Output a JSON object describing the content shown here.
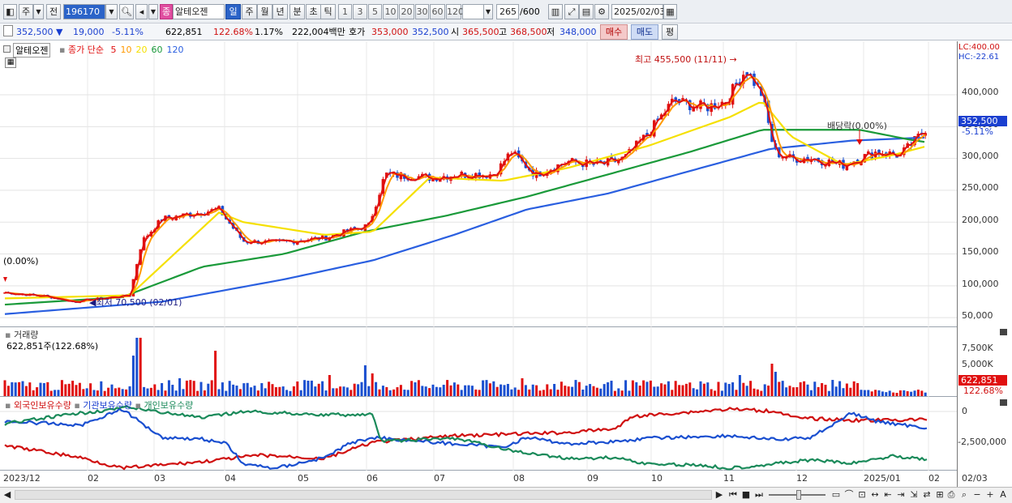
{
  "toolbar": {
    "period_main": "주",
    "period_prev": "전",
    "code": "196170",
    "stock_badge": "종",
    "stock_name": "알테오젠",
    "periods": [
      "일",
      "주",
      "월",
      "년",
      "분",
      "초",
      "틱"
    ],
    "active_period": "일",
    "intervals": [
      "1",
      "3",
      "5",
      "10",
      "20",
      "30",
      "60",
      "120"
    ],
    "count": "265",
    "count_total": "/600",
    "date": "2025/02/03"
  },
  "quote": {
    "price": "352,500",
    "change": "19,000",
    "change_pct": "-5.11%",
    "volume": "622,851",
    "vol_ratio": "122.68%",
    "turnover_pct": "1.17%",
    "amount": "222,004백만",
    "ask_label": "호가",
    "ask": "353,000",
    "bid": "352,500",
    "open_label": "시",
    "open": "365,500",
    "high_label": "고",
    "high": "368,500",
    "low_label": "저",
    "low": "348,000",
    "buy_button": "매수",
    "sell_button": "매도",
    "eval_button": "평"
  },
  "legend": {
    "name": "알테오젠",
    "series_label": "종가 단순",
    "ma": [
      "5",
      "10",
      "20",
      "60",
      "120"
    ],
    "ma_colors": [
      "#e01010",
      "#ff9900",
      "#f5e000",
      "#1a9a3a",
      "#2a5fe0"
    ]
  },
  "price_pane": {
    "lc": "LC:400.00",
    "hc": "HC:-22.61",
    "high_note": "최고 455,500 (11/11)",
    "low_note": "최저 70,500 (02/01)",
    "left_note": "(0.00%)",
    "dividend_note": "배당락(0.00%)",
    "last_price": "352,500",
    "last_pct": "-5.11%",
    "yticks": [
      "400,000",
      "350,000",
      "300,000",
      "250,000",
      "200,000",
      "150,000",
      "100,000",
      "50,000"
    ]
  },
  "volume_pane": {
    "title": "거래량",
    "info": "622,851주(122.68%)",
    "yticks": [
      "7,500K",
      "5,000K",
      "2,500K"
    ],
    "last": "622,851",
    "last_pct": "122.68%"
  },
  "holding_pane": {
    "title_foreign": "외국인보유수량",
    "title_inst": "기관보유수량",
    "title_indiv": "개인보유수량",
    "yticks": [
      "0",
      "-2,500,000"
    ]
  },
  "xaxis": [
    "2023/12",
    "02",
    "03",
    "04",
    "05",
    "06",
    "07",
    "08",
    "09",
    "10",
    "11",
    "12",
    "2025/01",
    "02",
    "02/03"
  ],
  "chart_data": {
    "type": "candlestick",
    "title": "알테오젠",
    "ylim": [
      40000,
      470000
    ],
    "close_anchors": [
      [
        0,
        90000
      ],
      [
        60,
        83000
      ],
      [
        90,
        75000
      ],
      [
        160,
        85000
      ],
      [
        175,
        170000
      ],
      [
        200,
        205000
      ],
      [
        270,
        220000
      ],
      [
        300,
        170000
      ],
      [
        340,
        168000
      ],
      [
        400,
        175000
      ],
      [
        455,
        195000
      ],
      [
        475,
        275000
      ],
      [
        530,
        270000
      ],
      [
        570,
        275000
      ],
      [
        610,
        275000
      ],
      [
        630,
        310000
      ],
      [
        660,
        275000
      ],
      [
        700,
        295000
      ],
      [
        740,
        290000
      ],
      [
        770,
        300000
      ],
      [
        800,
        340000
      ],
      [
        830,
        390000
      ],
      [
        870,
        380000
      ],
      [
        895,
        390000
      ],
      [
        920,
        440000
      ],
      [
        940,
        400000
      ],
      [
        955,
        310000
      ],
      [
        975,
        300000
      ],
      [
        1000,
        300000
      ],
      [
        1040,
        290000
      ],
      [
        1080,
        310000
      ],
      [
        1110,
        305000
      ],
      [
        1130,
        330000
      ],
      [
        1145,
        352500
      ]
    ],
    "ma60_anchors": [
      [
        0,
        70000
      ],
      [
        150,
        82000
      ],
      [
        250,
        130000
      ],
      [
        350,
        150000
      ],
      [
        450,
        185000
      ],
      [
        550,
        210000
      ],
      [
        650,
        240000
      ],
      [
        750,
        275000
      ],
      [
        850,
        310000
      ],
      [
        940,
        345000
      ],
      [
        1000,
        345000
      ],
      [
        1060,
        345000
      ],
      [
        1120,
        330000
      ],
      [
        1145,
        325000
      ]
    ],
    "ma120_anchors": [
      [
        0,
        55000
      ],
      [
        200,
        75000
      ],
      [
        350,
        110000
      ],
      [
        460,
        140000
      ],
      [
        560,
        180000
      ],
      [
        650,
        220000
      ],
      [
        750,
        245000
      ],
      [
        850,
        280000
      ],
      [
        950,
        315000
      ],
      [
        1050,
        328000
      ],
      [
        1145,
        333000
      ]
    ],
    "ma20_anchors": [
      [
        0,
        80000
      ],
      [
        160,
        85000
      ],
      [
        270,
        215000
      ],
      [
        300,
        200000
      ],
      [
        400,
        180000
      ],
      [
        460,
        185000
      ],
      [
        530,
        270000
      ],
      [
        620,
        265000
      ],
      [
        700,
        285000
      ],
      [
        800,
        320000
      ],
      [
        900,
        365000
      ],
      [
        940,
        390000
      ],
      [
        975,
        335000
      ],
      [
        1040,
        290000
      ],
      [
        1100,
        305000
      ],
      [
        1145,
        320000
      ]
    ]
  }
}
